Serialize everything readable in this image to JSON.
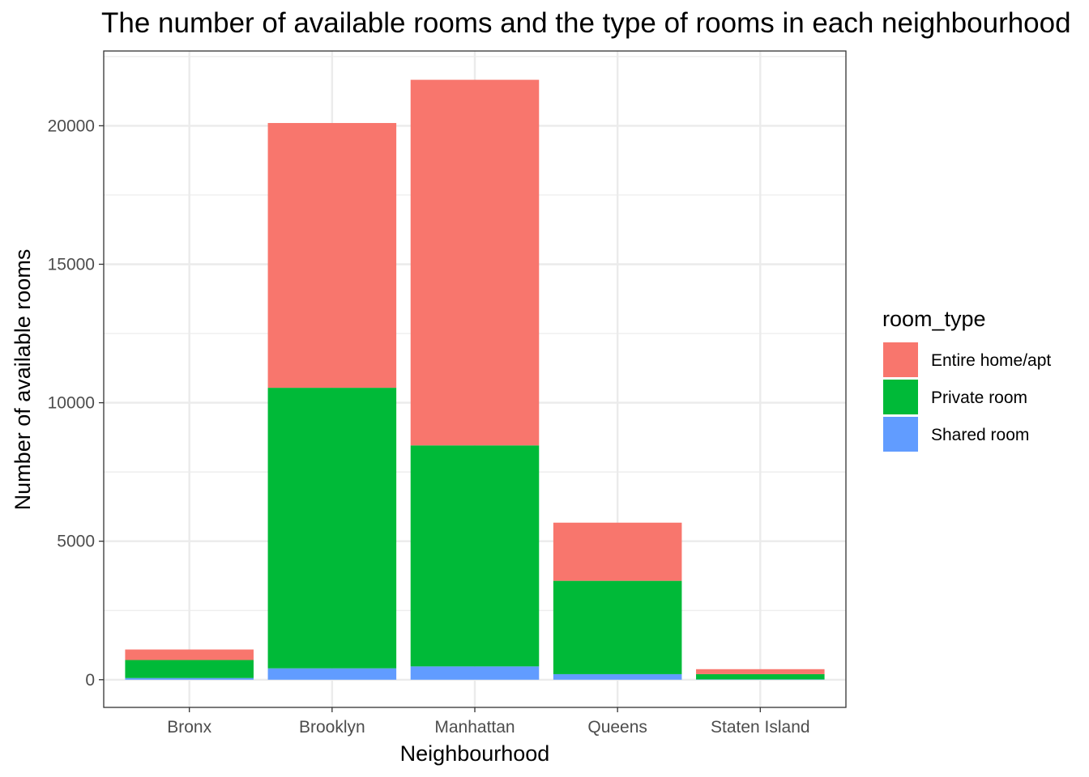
{
  "chart_data": {
    "type": "bar",
    "stacked": true,
    "title": "The number of available rooms and the type of rooms in each neighbourhood",
    "xlabel": "Neighbourhood",
    "ylabel": "Number of available rooms",
    "categories": [
      "Bronx",
      "Brooklyn",
      "Manhattan",
      "Queens",
      "Staten Island"
    ],
    "series": [
      {
        "name": "Shared room",
        "color": "#619CFF",
        "values": [
          60,
          410,
          480,
          200,
          10
        ]
      },
      {
        "name": "Private room",
        "color": "#00BA38",
        "values": [
          650,
          10130,
          7980,
          3370,
          190
        ]
      },
      {
        "name": "Entire home/apt",
        "color": "#F8766D",
        "values": [
          380,
          9560,
          13200,
          2100,
          180
        ]
      }
    ],
    "ylim": [
      -1000,
      22700
    ],
    "yticks": [
      0,
      5000,
      10000,
      15000,
      20000
    ],
    "yticks_minor": [
      2500,
      7500,
      12500,
      17500,
      22500
    ],
    "grid": true,
    "legend": {
      "title": "room_type",
      "placement": "right",
      "order": [
        "Entire home/apt",
        "Private room",
        "Shared room"
      ]
    }
  }
}
